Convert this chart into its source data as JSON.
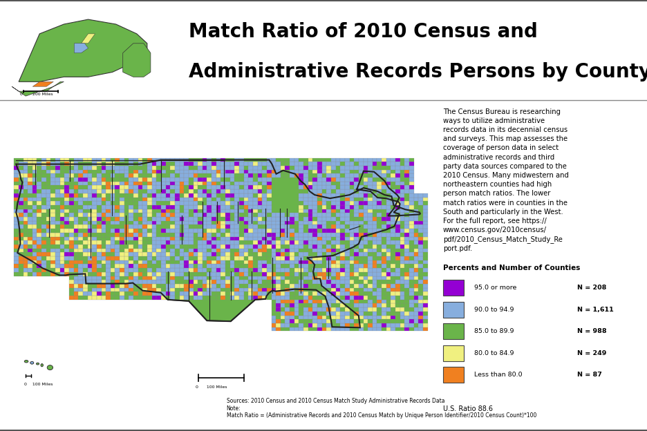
{
  "title_line1": "Match Ratio of 2010 Census and",
  "title_line2": "Administrative Records Persons by County",
  "title_fontsize": 20,
  "header_bg_color": "#f0ead8",
  "legend_title": "Percents and Number of Counties",
  "legend_items": [
    {
      "label": "95.0 or more",
      "n": "N = 208",
      "color": "#9400D3"
    },
    {
      "label": "90.0 to 94.9",
      "n": "N = 1,611",
      "color": "#87AEDE"
    },
    {
      "label": "85.0 to 89.9",
      "n": "N = 988",
      "color": "#6AB44A"
    },
    {
      "label": "80.0 to 84.9",
      "n": "N = 249",
      "color": "#F0F080"
    },
    {
      "label": "Less than 80.0",
      "n": "N = 87",
      "color": "#F08020"
    }
  ],
  "us_ratio_text": "U.S. Ratio 88.6",
  "description": "The Census Bureau is researching\nways to utilize administrative\nrecords data in its decennial census\nand surveys. This map assesses the\ncoverage of person data in select\nadministrative records and third\nparty data sources compared to the\n2010 Census. Many midwestern and\nnortheastern counties had high\nperson match ratios. The lower\nmatch ratios were in counties in the\nSouth and particularly in the West.\nFor the full report, see https://\nwww.census.gov/2010census/\npdf/2010_Census_Match_Study_Re\nport.pdf.",
  "sources_line1": "Sources: 2010 Census and 2010 Census Match Study Administrative Records Data",
  "sources_line2": "Note:",
  "sources_line3": "Match Ratio = (Administrative Records and 2010 Census Match by Unique Person Identifier/2010 Census Count)*100",
  "alaska_scale": "0       200 Miles",
  "hawaii_scale": "0    100 Miles",
  "conus_scale": "0      100 Miles"
}
